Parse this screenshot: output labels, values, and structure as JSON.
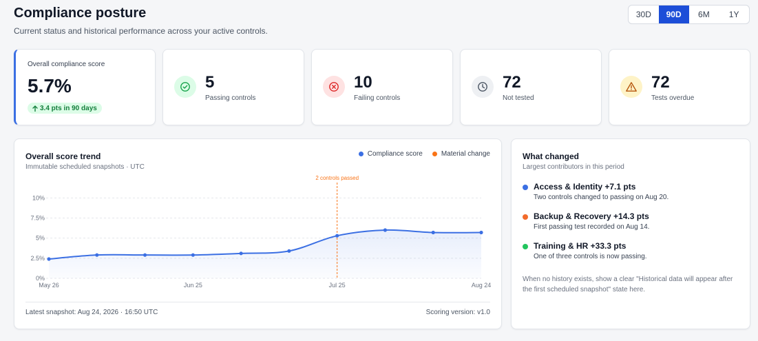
{
  "header": {
    "title": "Compliance posture",
    "subtitle": "Current status and historical performance across your active controls."
  },
  "range": {
    "options": [
      "30D",
      "90D",
      "6M",
      "1Y"
    ],
    "selected": "90D"
  },
  "score_card": {
    "label": "Overall compliance score",
    "value": "5.7%",
    "delta": "3.4 pts in 90 days",
    "delta_icon": "arrow-up-icon"
  },
  "stats": [
    {
      "value": "5",
      "label": "Passing controls",
      "icon": "check-circle-icon",
      "color": "#16a34a",
      "bg": "#dcfce7"
    },
    {
      "value": "10",
      "label": "Failing controls",
      "icon": "x-circle-icon",
      "color": "#dc2626",
      "bg": "#fee2e2"
    },
    {
      "value": "72",
      "label": "Not tested",
      "icon": "clock-icon",
      "color": "#4b5563",
      "bg": "#eef0f3"
    },
    {
      "value": "72",
      "label": "Tests overdue",
      "icon": "warning-triangle-icon",
      "color": "#b45309",
      "bg": "#fef3c7"
    }
  ],
  "trend": {
    "title": "Overall score trend",
    "subtitle": "Immutable scheduled snapshots · UTC",
    "footer_left": "Latest snapshot: Aug 24, 2026 · 16:50 UTC",
    "footer_right": "Scoring version: v1.0"
  },
  "chart_data": {
    "type": "line",
    "title": "Overall score trend",
    "series": [
      {
        "name": "Compliance score",
        "color": "#3b6fe3",
        "x": [
          "May 26",
          "Jun 5",
          "Jun 15",
          "Jun 25",
          "Jul 5",
          "Jul 15",
          "Jul 25",
          "Aug 4",
          "Aug 14",
          "Aug 24"
        ],
        "values": [
          2.4,
          2.9,
          2.9,
          2.9,
          3.1,
          3.4,
          5.3,
          6.0,
          5.7,
          5.7
        ]
      }
    ],
    "x_ticks": [
      "May 26",
      "Jun 25",
      "Jul 25",
      "Aug 24"
    ],
    "y_ticks": [
      "0%",
      "2.5%",
      "5%",
      "7.5%",
      "10%"
    ],
    "ylim": [
      0,
      12
    ],
    "grid": true,
    "legend": [
      {
        "name": "Compliance score",
        "color": "#3b6fe3"
      },
      {
        "name": "Material change",
        "color": "#f97316"
      }
    ],
    "legend_position": "top-right",
    "annotations": [
      {
        "x": "Jul 25",
        "label": "2 controls passed",
        "color": "#f97316"
      }
    ]
  },
  "changes": {
    "title": "What changed",
    "subtitle": "Largest contributors in this period",
    "items": [
      {
        "title": "Access & Identity +7.1 pts",
        "desc": "Two controls changed to passing on Aug 20.",
        "color": "#3b6fe3"
      },
      {
        "title": "Backup & Recovery +14.3 pts",
        "desc": "First passing test recorded on Aug 14.",
        "color": "#f26b2b"
      },
      {
        "title": "Training & HR +33.3 pts",
        "desc": "One of three controls is now passing.",
        "color": "#22c55e"
      }
    ],
    "note": "When no history exists, show a clear \"Historical data will appear after the first scheduled snapshot\" state here."
  }
}
